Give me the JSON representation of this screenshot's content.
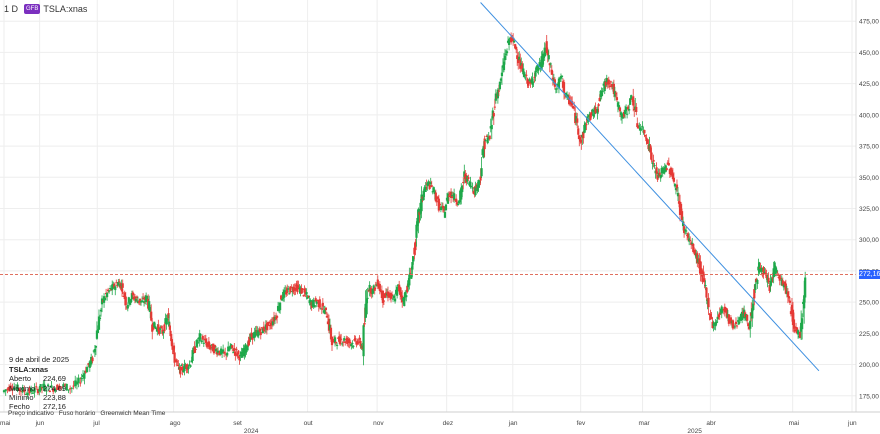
{
  "header": {
    "interval": "1 D",
    "badge": "GFB",
    "symbol": "TSLA:xnas"
  },
  "info": {
    "date": "9 de abril de 2025",
    "symbol": "TSLA:xnas",
    "rows": [
      {
        "label": "Aberto",
        "value": "224,69"
      },
      {
        "label": "Máximo",
        "value": "274,69"
      },
      {
        "label": "Mínimo",
        "value": "223,88"
      },
      {
        "label": "Fecho",
        "value": "272,16"
      }
    ]
  },
  "footer": {
    "price_label": "Preço indicativo",
    "tz_label": "Fuso horário",
    "tz_value": "Greenwich Mean Time"
  },
  "current_price_tag": "272,16",
  "colors": {
    "up": "#1ea84a",
    "down": "#e53935",
    "trendline": "#3d8fe0",
    "price_line": "#e0705f",
    "tag": "#2962ff",
    "grid": "#eeeeee"
  },
  "chart_data": {
    "type": "candlestick",
    "title": "",
    "ylim": [
      162,
      492
    ],
    "y_ticks": [
      "175,00",
      "200,00",
      "225,00",
      "250,00",
      "275,00",
      "300,00",
      "325,00",
      "350,00",
      "375,00",
      "400,00",
      "425,00",
      "450,00",
      "475,00"
    ],
    "y_tick_values": [
      175,
      200,
      225,
      250,
      275,
      300,
      325,
      350,
      375,
      400,
      425,
      450,
      475
    ],
    "x_months": [
      {
        "label": "mai",
        "t": 0
      },
      {
        "label": "jun",
        "t": 0.042
      },
      {
        "label": "jul",
        "t": 0.11
      },
      {
        "label": "ago",
        "t": 0.2
      },
      {
        "label": "set",
        "t": 0.275
      },
      {
        "label": "out",
        "t": 0.358
      },
      {
        "label": "nov",
        "t": 0.44
      },
      {
        "label": "dez",
        "t": 0.522
      },
      {
        "label": "jan",
        "t": 0.6
      },
      {
        "label": "fev",
        "t": 0.68
      },
      {
        "label": "mar",
        "t": 0.753
      },
      {
        "label": "abr",
        "t": 0.833
      },
      {
        "label": "mai",
        "t": 0.93
      },
      {
        "label": "jun",
        "t": 1.0
      }
    ],
    "x_years": [
      {
        "label": "2024",
        "t": 0.29
      },
      {
        "label": "2025",
        "t": 0.813
      }
    ],
    "current_price": 272.16,
    "trendline": [
      {
        "t": 0.562,
        "y": 490
      },
      {
        "t": 0.961,
        "y": 195
      }
    ],
    "close_path": [
      [
        0.0,
        178
      ],
      [
        0.01,
        183
      ],
      [
        0.02,
        180
      ],
      [
        0.03,
        178
      ],
      [
        0.04,
        180
      ],
      [
        0.048,
        182
      ],
      [
        0.058,
        181
      ],
      [
        0.07,
        183
      ],
      [
        0.08,
        181
      ],
      [
        0.09,
        186
      ],
      [
        0.098,
        196
      ],
      [
        0.106,
        205
      ],
      [
        0.112,
        232
      ],
      [
        0.118,
        252
      ],
      [
        0.124,
        258
      ],
      [
        0.13,
        262
      ],
      [
        0.136,
        266
      ],
      [
        0.14,
        262
      ],
      [
        0.146,
        248
      ],
      [
        0.152,
        255
      ],
      [
        0.158,
        252
      ],
      [
        0.164,
        250
      ],
      [
        0.17,
        254
      ],
      [
        0.176,
        232
      ],
      [
        0.182,
        229
      ],
      [
        0.188,
        226
      ],
      [
        0.194,
        238
      ],
      [
        0.198,
        222
      ],
      [
        0.202,
        205
      ],
      [
        0.208,
        195
      ],
      [
        0.214,
        198
      ],
      [
        0.22,
        200
      ],
      [
        0.226,
        213
      ],
      [
        0.232,
        222
      ],
      [
        0.238,
        218
      ],
      [
        0.244,
        214
      ],
      [
        0.25,
        212
      ],
      [
        0.256,
        210
      ],
      [
        0.262,
        208
      ],
      [
        0.268,
        214
      ],
      [
        0.274,
        210
      ],
      [
        0.28,
        206
      ],
      [
        0.286,
        213
      ],
      [
        0.292,
        222
      ],
      [
        0.298,
        225
      ],
      [
        0.304,
        227
      ],
      [
        0.31,
        230
      ],
      [
        0.316,
        233
      ],
      [
        0.322,
        239
      ],
      [
        0.328,
        254
      ],
      [
        0.334,
        258
      ],
      [
        0.34,
        261
      ],
      [
        0.346,
        262
      ],
      [
        0.352,
        259
      ],
      [
        0.358,
        255
      ],
      [
        0.364,
        248
      ],
      [
        0.37,
        251
      ],
      [
        0.376,
        246
      ],
      [
        0.382,
        240
      ],
      [
        0.388,
        218
      ],
      [
        0.394,
        219
      ],
      [
        0.4,
        220
      ],
      [
        0.406,
        219
      ],
      [
        0.412,
        217
      ],
      [
        0.418,
        219
      ],
      [
        0.424,
        214
      ],
      [
        0.43,
        262
      ],
      [
        0.436,
        259
      ],
      [
        0.442,
        266
      ],
      [
        0.448,
        253
      ],
      [
        0.454,
        257
      ],
      [
        0.46,
        251
      ],
      [
        0.466,
        262
      ],
      [
        0.472,
        251
      ],
      [
        0.478,
        265
      ],
      [
        0.484,
        286
      ],
      [
        0.49,
        318
      ],
      [
        0.496,
        340
      ],
      [
        0.502,
        345
      ],
      [
        0.508,
        339
      ],
      [
        0.514,
        327
      ],
      [
        0.52,
        322
      ],
      [
        0.526,
        338
      ],
      [
        0.532,
        334
      ],
      [
        0.538,
        330
      ],
      [
        0.544,
        351
      ],
      [
        0.55,
        346
      ],
      [
        0.556,
        339
      ],
      [
        0.562,
        348
      ],
      [
        0.568,
        380
      ],
      [
        0.574,
        382
      ],
      [
        0.58,
        412
      ],
      [
        0.586,
        424
      ],
      [
        0.592,
        447
      ],
      [
        0.598,
        463
      ],
      [
        0.604,
        455
      ],
      [
        0.61,
        440
      ],
      [
        0.616,
        430
      ],
      [
        0.622,
        424
      ],
      [
        0.628,
        435
      ],
      [
        0.634,
        440
      ],
      [
        0.64,
        454
      ],
      [
        0.646,
        436
      ],
      [
        0.652,
        420
      ],
      [
        0.658,
        430
      ],
      [
        0.664,
        414
      ],
      [
        0.67,
        410
      ],
      [
        0.676,
        395
      ],
      [
        0.682,
        378
      ],
      [
        0.688,
        396
      ],
      [
        0.694,
        400
      ],
      [
        0.7,
        405
      ],
      [
        0.706,
        418
      ],
      [
        0.712,
        428
      ],
      [
        0.718,
        424
      ],
      [
        0.724,
        410
      ],
      [
        0.73,
        398
      ],
      [
        0.736,
        404
      ],
      [
        0.742,
        415
      ],
      [
        0.748,
        392
      ],
      [
        0.754,
        388
      ],
      [
        0.76,
        380
      ],
      [
        0.766,
        362
      ],
      [
        0.772,
        350
      ],
      [
        0.778,
        355
      ],
      [
        0.784,
        360
      ],
      [
        0.79,
        350
      ],
      [
        0.796,
        335
      ],
      [
        0.802,
        310
      ],
      [
        0.808,
        302
      ],
      [
        0.814,
        292
      ],
      [
        0.82,
        282
      ],
      [
        0.826,
        267
      ],
      [
        0.832,
        245
      ],
      [
        0.838,
        230
      ],
      [
        0.844,
        240
      ],
      [
        0.85,
        246
      ],
      [
        0.856,
        236
      ],
      [
        0.862,
        230
      ],
      [
        0.868,
        237
      ],
      [
        0.874,
        241
      ],
      [
        0.88,
        230
      ],
      [
        0.886,
        260
      ],
      [
        0.892,
        279
      ],
      [
        0.898,
        272
      ],
      [
        0.904,
        262
      ],
      [
        0.91,
        278
      ],
      [
        0.916,
        268
      ],
      [
        0.922,
        262
      ],
      [
        0.928,
        248
      ],
      [
        0.934,
        228
      ],
      [
        0.94,
        224
      ],
      [
        0.946,
        272
      ]
    ]
  }
}
